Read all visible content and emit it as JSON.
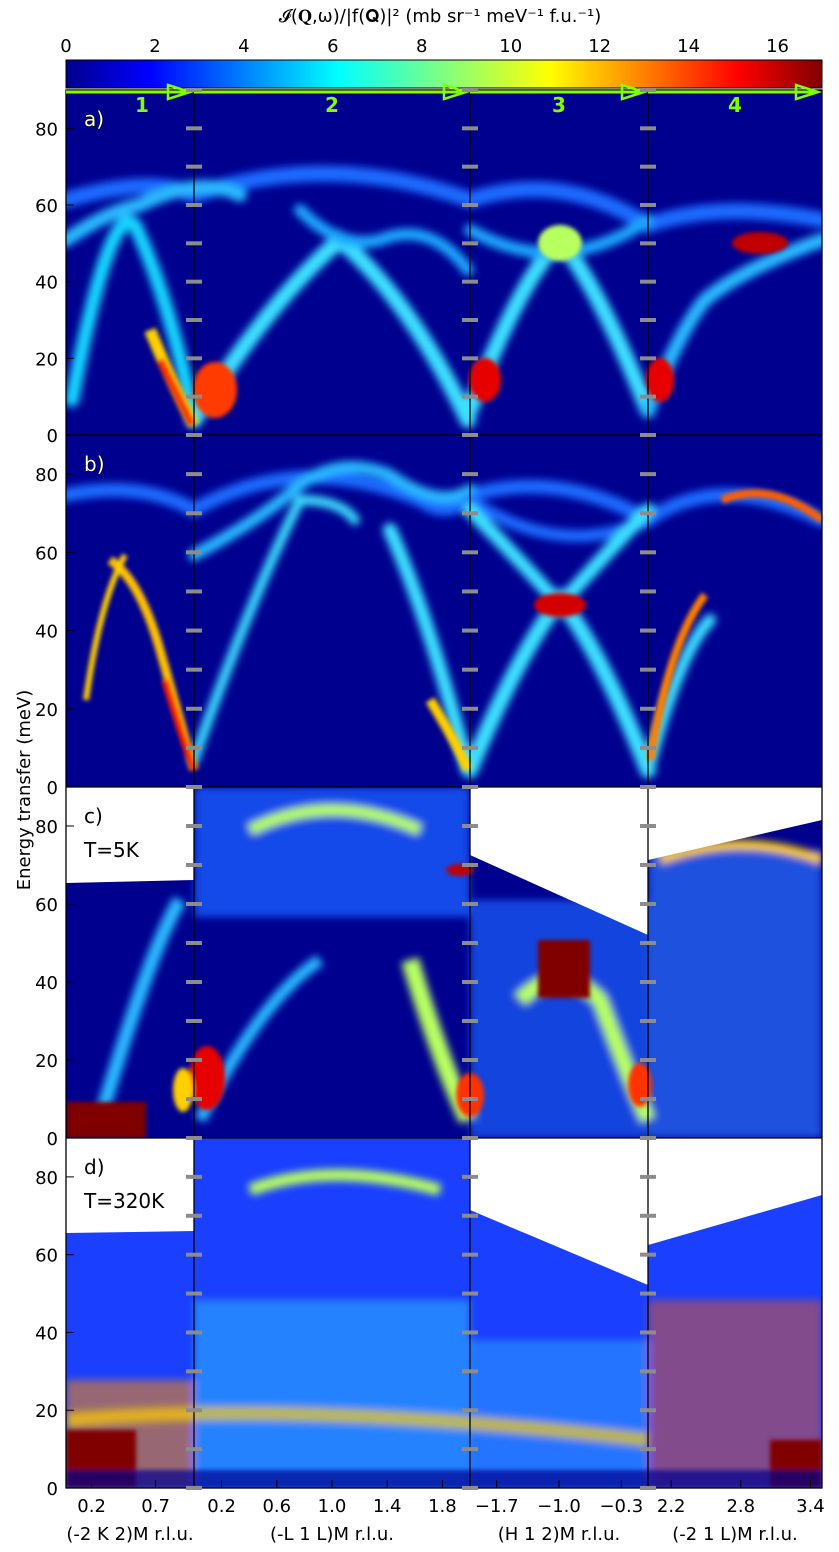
{
  "colorbar": {
    "label": "𝓘(𝐐,ω)/|f(𝐐)|² (mb sr⁻¹ meV⁻¹ f.u.⁻¹)",
    "ticks": [
      "0",
      "2",
      "4",
      "6",
      "8",
      "10",
      "12",
      "14",
      "16"
    ],
    "range": [
      0,
      17
    ],
    "colormap": "jet"
  },
  "colors": {
    "path_arrow": "#7fff00",
    "background_colormap_low": "#00008f",
    "saturated": "#800000",
    "tick_marks": "#8c8c8c"
  },
  "chart_data": {
    "type": "heatmap",
    "ylabel": "Energy transfer (meV)",
    "ylim": [
      0,
      90
    ],
    "yticks": [
      "0",
      "20",
      "40",
      "60",
      "80"
    ],
    "path_segments": [
      {
        "label": "1",
        "xlabel": "(-2 K 2)M r.l.u.",
        "xticks": [
          "0.2",
          "0.7"
        ],
        "x_range": [
          0.0,
          1.0
        ]
      },
      {
        "label": "2",
        "xlabel": "(-L 1 L)M r.l.u.",
        "xticks": [
          "0.2",
          "0.6",
          "1.0",
          "1.4",
          "1.8"
        ],
        "x_range": [
          0.0,
          2.0
        ]
      },
      {
        "label": "3",
        "xlabel": "(H 1 2)M r.l.u.",
        "xticks": [
          "−1.7",
          "−1.0",
          "−0.3"
        ],
        "x_range": [
          -2.0,
          0.0
        ]
      },
      {
        "label": "4",
        "xlabel": "(-2 1 L)M r.l.u.",
        "xticks": [
          "2.2",
          "2.8",
          "3.4"
        ],
        "x_range": [
          2.0,
          3.5
        ]
      }
    ],
    "panels": [
      {
        "label": "a)",
        "kind": "calculation"
      },
      {
        "label": "b)",
        "kind": "calculation"
      },
      {
        "label": "c)",
        "kind": "measurement",
        "temperature": "T=5K"
      },
      {
        "label": "d)",
        "kind": "measurement",
        "temperature": "T=320K"
      }
    ]
  }
}
